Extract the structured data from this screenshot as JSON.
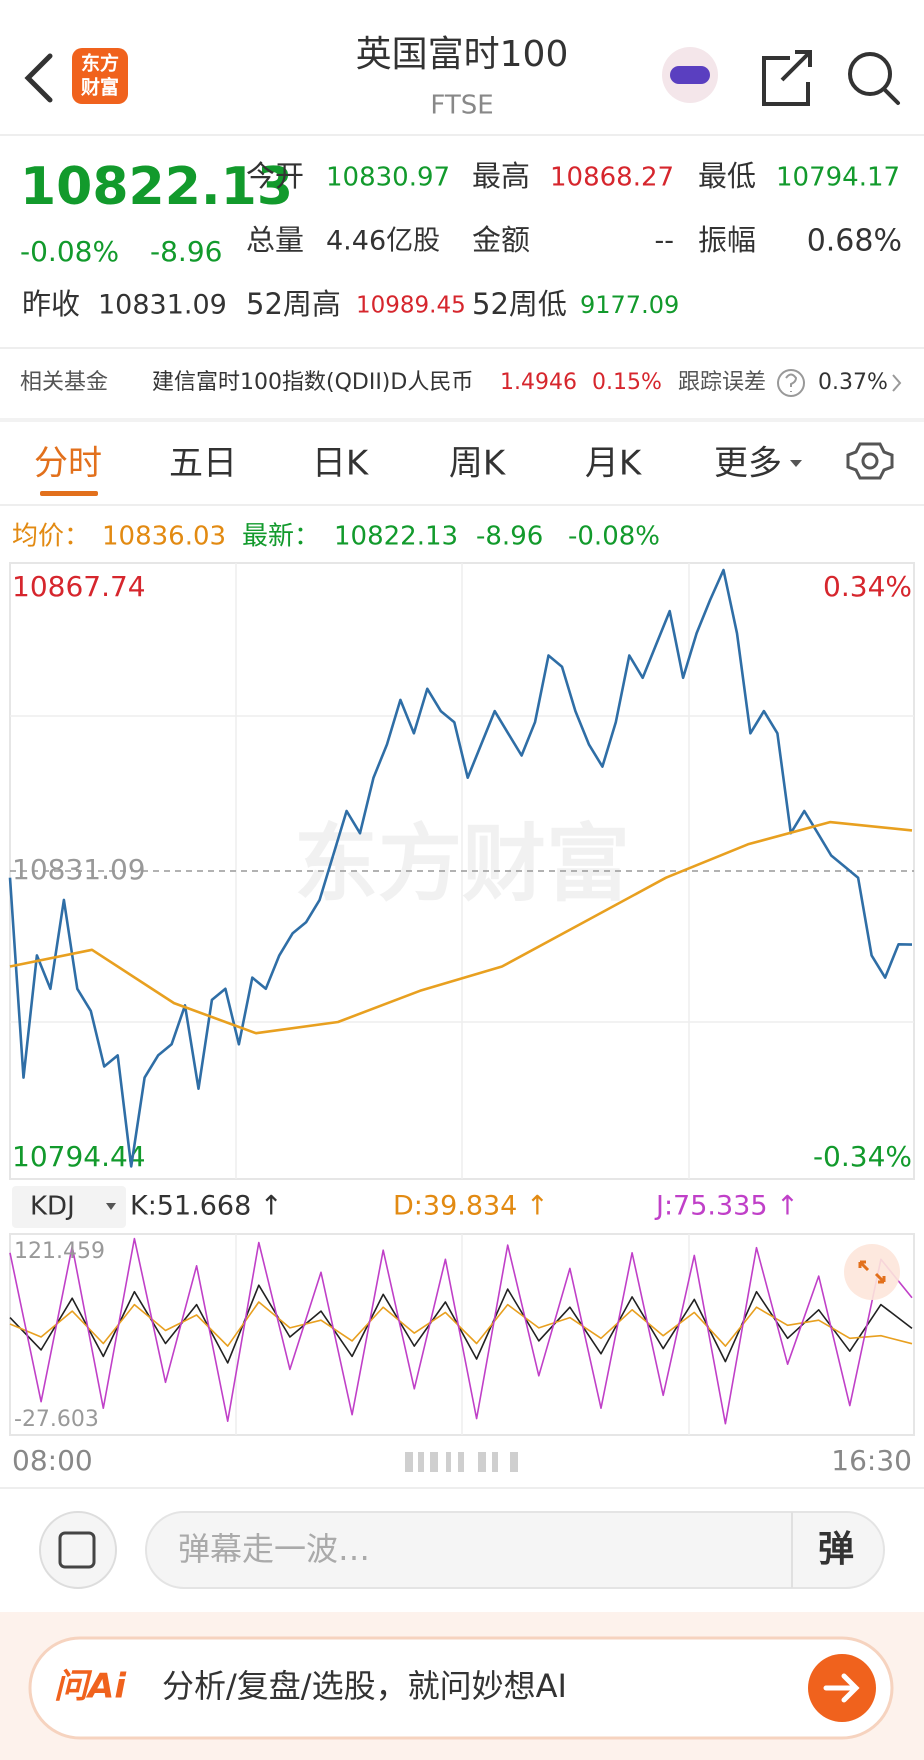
{
  "header": {
    "logo": [
      "东方",
      "财富"
    ],
    "title": "英国富时100",
    "subtitle": "FTSE"
  },
  "quote": {
    "price": "10822.13",
    "change_pct": "-0.08%",
    "change": "-8.96",
    "fields": [
      {
        "label": "今开",
        "value": "10830.97"
      },
      {
        "label": "最高",
        "value": "10868.27"
      },
      {
        "label": "最低",
        "value": "10794.17"
      },
      {
        "label": "总量",
        "value": "4.46亿股"
      },
      {
        "label": "金额",
        "value": "--"
      },
      {
        "label": "振幅",
        "value": "0.68%"
      },
      {
        "label": "昨收",
        "value": "10831.09"
      },
      {
        "label": "52周高",
        "value": "10989.45"
      },
      {
        "label": "52周低",
        "value": "9177.09"
      }
    ]
  },
  "fund": {
    "label": "相关基金",
    "name": "建信富时100指数(QDII)D人民币",
    "price": "1.4946",
    "change": "0.15%",
    "error_label": "跟踪误差",
    "error": "0.37%"
  },
  "tabs": [
    "分时",
    "五日",
    "日K",
    "周K",
    "月K",
    "更多"
  ],
  "info": {
    "avg_label": "均价：",
    "avg": "10836.03",
    "latest_label": "最新：",
    "latest": "10822.13",
    "change": "-8.96",
    "change_pct": "-0.08%"
  },
  "chart_data": [
    {
      "type": "line",
      "watermark": "东方财富",
      "ylim": [
        10794.44,
        10867.74
      ],
      "yticks": [
        10867.74,
        10794.44
      ],
      "ref_line": 10831.09,
      "y2lim": [
        -0.34,
        0.34
      ],
      "y2ticks": [
        {
          "value": 0.34,
          "label": "0.34%"
        },
        {
          "value": -0.34,
          "label": "-0.34%"
        }
      ],
      "x_labels": [
        "08:00",
        "16:30"
      ],
      "series": [
        {
          "name": "价格",
          "color": "#2f6ea6",
          "values": [
            10830.28,
            10805.94,
            10820.81,
            10816.75,
            10827.57,
            10816.75,
            10814.05,
            10807.29,
            10808.64,
            10795.12,
            10805.94,
            10808.64,
            10809.99,
            10814.73,
            10804.58,
            10815.4,
            10816.75,
            10809.99,
            10818.11,
            10816.75,
            10820.81,
            10823.52,
            10824.87,
            10827.57,
            10832.98,
            10838.39,
            10835.69,
            10842.45,
            10846.51,
            10851.92,
            10847.86,
            10853.27,
            10850.56,
            10849.21,
            10842.45,
            10846.51,
            10850.56,
            10847.86,
            10845.15,
            10849.21,
            10857.33,
            10855.97,
            10850.56,
            10846.51,
            10843.8,
            10849.21,
            10857.33,
            10854.62,
            10858.68,
            10862.74,
            10854.62,
            10860.03,
            10864.09,
            10867.74,
            10860.03,
            10847.86,
            10850.56,
            10847.86,
            10835.69,
            10838.39,
            10835.69,
            10832.98,
            10831.63,
            10830.28,
            10820.81,
            10818.11,
            10822.16,
            10822.13
          ]
        },
        {
          "name": "均价",
          "color": "#e8a020",
          "values": [
            10819.46,
            10821.5,
            10815,
            10811.34,
            10812.7,
            10816.5,
            10819.46,
            10824.87,
            10830.28,
            10834.34,
            10837.04,
            10836.03
          ]
        }
      ]
    },
    {
      "type": "line",
      "indicator": "KDJ",
      "ylim": [
        -27.603,
        121.459
      ],
      "yticks": [
        121.459,
        -27.603
      ],
      "series": [
        {
          "name": "K",
          "color": "#222222",
          "latest_label": "K:51.668 ↑",
          "values": [
            60,
            35,
            75,
            30,
            80,
            40,
            70,
            25,
            85,
            45,
            65,
            30,
            78,
            38,
            72,
            28,
            82,
            42,
            68,
            32,
            76,
            36,
            74,
            26,
            80,
            44,
            66,
            34,
            70,
            51.668
          ]
        },
        {
          "name": "D",
          "color": "#e8a020",
          "latest_label": "D:39.834 ↑",
          "values": [
            55,
            45,
            65,
            40,
            70,
            50,
            62,
            38,
            72,
            52,
            58,
            42,
            68,
            48,
            64,
            40,
            70,
            52,
            60,
            44,
            66,
            46,
            64,
            38,
            68,
            54,
            58,
            44,
            46,
            39.834
          ]
        },
        {
          "name": "J",
          "color": "#c040c8",
          "latest_label": "J:75.335 ↑",
          "values": [
            110,
            -5,
            115,
            -10,
            121,
            10,
            100,
            -20,
            118,
            20,
            95,
            -15,
            112,
            5,
            105,
            -18,
            116,
            15,
            98,
            -10,
            110,
            0,
            108,
            -22,
            114,
            24,
            92,
            -8,
            105,
            75.335
          ]
        }
      ]
    }
  ],
  "bottom": {
    "comment_placeholder": "弹幕走一波…",
    "danmu": "弹",
    "ai_logo": "问Ai",
    "ai_prompt": "分析/复盘/选股，就问妙想AI"
  }
}
